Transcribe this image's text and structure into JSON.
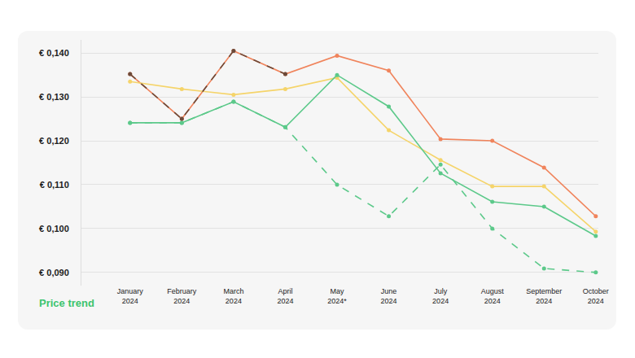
{
  "chart_data": {
    "type": "line",
    "annotation": "Price trend",
    "categories": [
      "January 2024",
      "February 2024",
      "March 2024",
      "April 2024",
      "May 2024*",
      "June 2024",
      "July 2024",
      "August 2024",
      "September 2024",
      "October 2024"
    ],
    "series": [
      {
        "color": "#f0845c",
        "line_style": "solid",
        "marker": "circle",
        "values": [
          0.1352,
          0.125,
          0.1405,
          0.1352,
          0.1394,
          0.136,
          0.1204,
          0.12,
          0.1139,
          0.1028
        ]
      },
      {
        "color": "#f5d46a",
        "line_style": "solid",
        "marker": "circle",
        "values": [
          0.1335,
          0.1318,
          0.1305,
          0.1318,
          0.1344,
          0.1224,
          0.1156,
          0.1096,
          0.1096,
          0.0993
        ]
      },
      {
        "color": "#5cc98a",
        "line_style": "dashed",
        "marker": "circle",
        "values": [
          0.1241,
          0.1241,
          0.1289,
          0.1231,
          0.11,
          0.1028,
          0.1146,
          0.1,
          0.0909,
          0.09
        ]
      },
      {
        "color": "#5cc98a",
        "line_style": "solid",
        "marker": "circle",
        "values": [
          0.1241,
          0.1241,
          0.1289,
          0.1231,
          0.135,
          0.1278,
          0.1126,
          0.1061,
          0.105,
          0.0983
        ]
      },
      {
        "color": "#6b4a3a",
        "line_style": "dashed",
        "marker": "circle",
        "values": [
          0.1352,
          0.125,
          0.1405,
          0.1352,
          null,
          null,
          null,
          null,
          null,
          null
        ]
      }
    ],
    "ylim": [
      0.087,
      0.143
    ],
    "yticks": [
      {
        "value": 0.09,
        "label": "€ 0,090"
      },
      {
        "value": 0.1,
        "label": "€ 0,100"
      },
      {
        "value": 0.11,
        "label": "€ 0,110"
      },
      {
        "value": 0.12,
        "label": "€ 0,120"
      },
      {
        "value": 0.13,
        "label": "€ 0,130"
      },
      {
        "value": 0.14,
        "label": "€ 0,140"
      }
    ],
    "grid": true
  }
}
